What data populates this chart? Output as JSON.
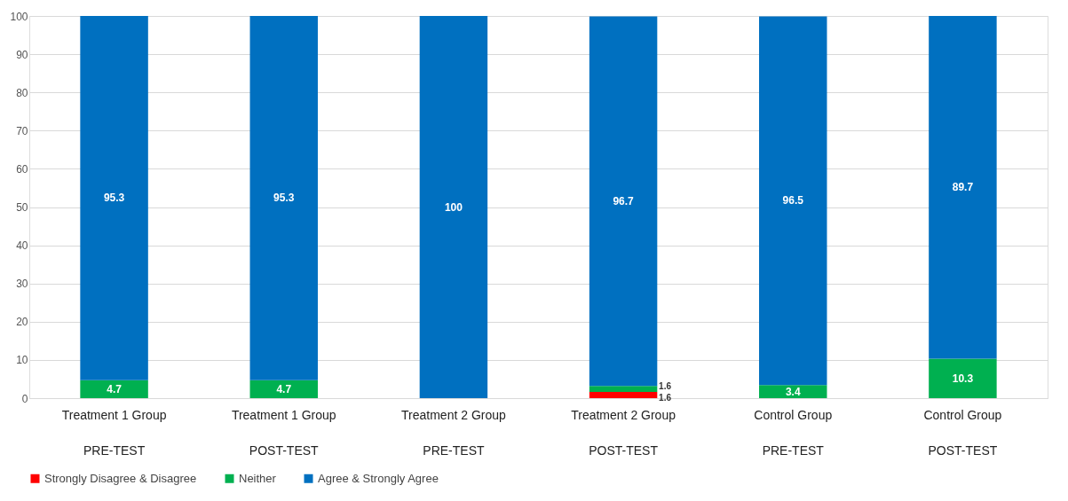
{
  "chart_data": {
    "type": "bar",
    "stacked": true,
    "data_labels": true,
    "grid": "y",
    "legend": "bottom",
    "categories": [
      "Treatment 1 Group\nPRE-TEST",
      "Treatment 1 Group\nPOST-TEST",
      "Treatment 2 Group\nPRE-TEST",
      "Treatment 2 Group\nPOST-TEST",
      "Control Group\nPRE-TEST",
      "Control Group\nPOST-TEST"
    ],
    "ylim": [
      0,
      100
    ],
    "yticks": [
      0,
      10,
      20,
      30,
      40,
      50,
      60,
      70,
      80,
      90,
      100
    ],
    "series": [
      {
        "name": "Strongly Disagree & Disagree",
        "color": "#ff0000",
        "values": [
          null,
          null,
          null,
          1.6,
          null,
          null
        ]
      },
      {
        "name": "Neither",
        "color": "#00b050",
        "values": [
          4.7,
          4.7,
          null,
          1.6,
          3.4,
          10.3
        ]
      },
      {
        "name": "Agree & Strongly Agree",
        "color": "#0070c0",
        "values": [
          95.3,
          95.3,
          100,
          96.7,
          96.5,
          89.7
        ]
      }
    ]
  }
}
